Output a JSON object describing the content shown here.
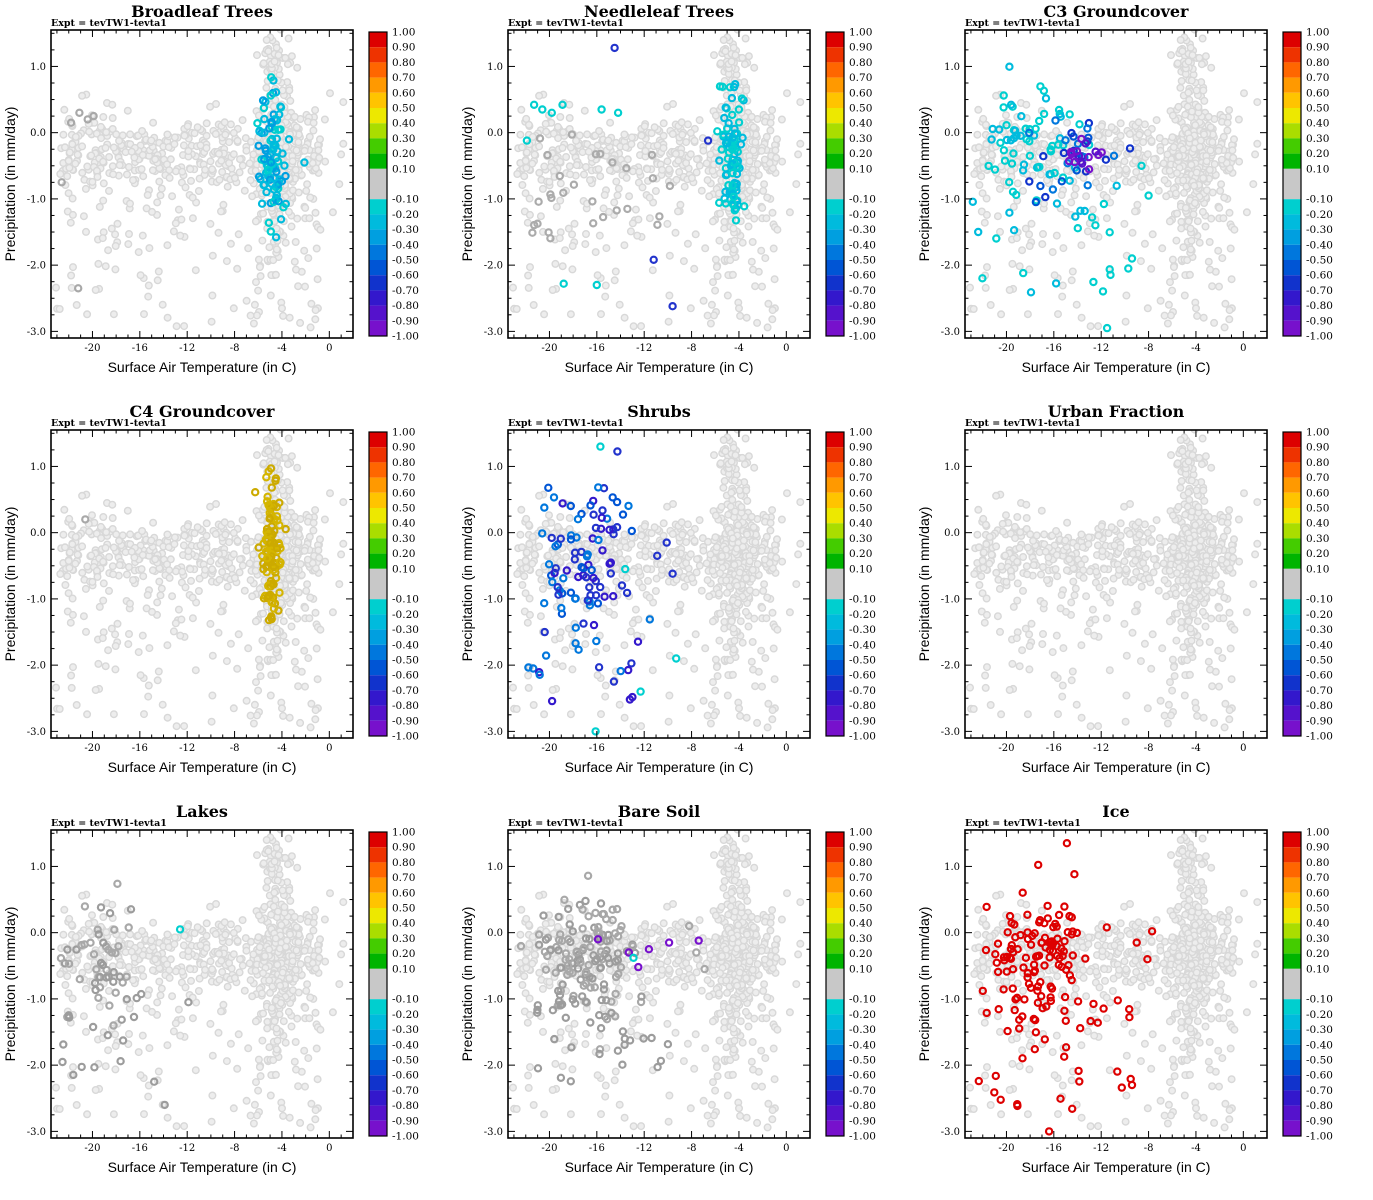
{
  "page_title": "Correlation scatter panels",
  "chart_data": {
    "type": "scatter",
    "grid": {
      "rows": 3,
      "cols": 3
    },
    "experiment_label": "Expt = tevTW1-tevta1",
    "xlabel": "Surface Air Temperature (in C)",
    "ylabel": "Precipitation (in mm/day)",
    "xlim": [
      -23.5,
      2.0
    ],
    "ylim": [
      -3.1,
      1.55
    ],
    "x_major_ticks": [
      -20,
      -16,
      -12,
      -8,
      -4,
      0
    ],
    "y_major_ticks": [
      1.0,
      0.0,
      -1.0,
      -2.0,
      -3.0
    ],
    "x_minor_step": 1,
    "y_minor_step": 0.25,
    "background_color": "#EDEDED",
    "background_edge": "#D8D8D8",
    "colorbar": {
      "range": [
        1.0,
        -1.0
      ],
      "labels": [
        "1.00",
        "0.90",
        "0.80",
        "0.70",
        "0.60",
        "0.50",
        "0.40",
        "0.30",
        "0.20",
        "0.10",
        "-0.10",
        "-0.20",
        "-0.30",
        "-0.40",
        "-0.50",
        "-0.60",
        "-0.70",
        "-0.80",
        "-0.90",
        "-1.00"
      ],
      "bands": [
        {
          "from": 1.0,
          "to": 0.9,
          "color": "#DD0000"
        },
        {
          "from": 0.9,
          "to": 0.8,
          "color": "#EE3300"
        },
        {
          "from": 0.8,
          "to": 0.7,
          "color": "#FF6600"
        },
        {
          "from": 0.7,
          "to": 0.6,
          "color": "#FF9900"
        },
        {
          "from": 0.6,
          "to": 0.5,
          "color": "#FFC400"
        },
        {
          "from": 0.5,
          "to": 0.4,
          "color": "#EDE800"
        },
        {
          "from": 0.4,
          "to": 0.3,
          "color": "#AADD00"
        },
        {
          "from": 0.3,
          "to": 0.2,
          "color": "#44CC00"
        },
        {
          "from": 0.2,
          "to": 0.1,
          "color": "#00B400"
        },
        {
          "from": 0.1,
          "to": -0.1,
          "color": "#C8C8C8"
        },
        {
          "from": -0.1,
          "to": -0.2,
          "color": "#00CFCF"
        },
        {
          "from": -0.2,
          "to": -0.3,
          "color": "#00BBDD"
        },
        {
          "from": -0.3,
          "to": -0.4,
          "color": "#009FE0"
        },
        {
          "from": -0.4,
          "to": -0.5,
          "color": "#0077DD"
        },
        {
          "from": -0.5,
          "to": -0.6,
          "color": "#0055D5"
        },
        {
          "from": -0.6,
          "to": -0.7,
          "color": "#1133CC"
        },
        {
          "from": -0.7,
          "to": -0.8,
          "color": "#3318CC"
        },
        {
          "from": -0.8,
          "to": -0.9,
          "color": "#5512CC"
        },
        {
          "from": -0.9,
          "to": -1.0,
          "color": "#7711CC"
        }
      ]
    },
    "background_clusters": [
      {
        "seed": 1,
        "count": 380,
        "x": {
          "type": "uniform",
          "a": -22.8,
          "b": -0.8
        },
        "y": {
          "type": "normal",
          "mean": -0.27,
          "sd": 0.27
        }
      },
      {
        "seed": 2,
        "count": 230,
        "x": {
          "type": "normal",
          "mean": -4.3,
          "sd": 0.75
        },
        "y": {
          "type": "normal",
          "mean": -0.45,
          "sd": 0.8
        }
      },
      {
        "seed": 3,
        "count": 34,
        "x": {
          "type": "normal",
          "mean": -4.7,
          "sd": 0.55
        },
        "y": {
          "type": "uniform",
          "a": 0.55,
          "b": 1.45
        }
      },
      {
        "seed": 4,
        "count": 150,
        "x": {
          "type": "uniform",
          "a": -23.2,
          "b": -0.6
        },
        "y": {
          "type": "uniform",
          "a": -2.95,
          "b": -0.4
        }
      },
      {
        "seed": 5,
        "count": 26,
        "x": {
          "type": "uniform",
          "a": -23.2,
          "b": -17.5
        },
        "y": {
          "type": "uniform",
          "a": -2.4,
          "b": 0.6
        }
      },
      {
        "seed": 6,
        "count": 10,
        "x": {
          "type": "uniform",
          "a": -0.8,
          "b": 1.3
        },
        "y": {
          "type": "normal",
          "mean": -0.3,
          "sd": 0.5
        }
      }
    ],
    "panels": [
      {
        "title": "Broadleaf Trees",
        "overlays": [
          {
            "seed": 11,
            "count": 95,
            "x": {
              "type": "normal",
              "mean": -4.9,
              "sd": 0.5
            },
            "y": {
              "type": "normal",
              "mean": -0.35,
              "sd": 0.52
            },
            "colors": [
              "#00BBDD",
              "#00CFCF",
              "#009FE0",
              "#00BBDD"
            ]
          },
          {
            "points": [
              [
                -2.1,
                -0.45
              ],
              [
                -3.4,
                -0.1
              ]
            ],
            "colors": [
              "#00BBDD"
            ]
          },
          {
            "points": [
              [
                -21.1,
                0.3
              ],
              [
                -20.4,
                0.2
              ],
              [
                -21.8,
                0.15
              ],
              [
                -22.6,
                -0.75
              ],
              [
                -21.2,
                -2.35
              ],
              [
                -19.9,
                0.25
              ]
            ],
            "colors": [
              "#A8A8A8"
            ]
          }
        ]
      },
      {
        "title": "Needleleaf Trees",
        "overlays": [
          {
            "seed": 21,
            "count": 85,
            "x": {
              "type": "normal",
              "mean": -4.6,
              "sd": 0.5
            },
            "y": {
              "type": "normal",
              "mean": -0.35,
              "sd": 0.55
            },
            "colors": [
              "#00BBDD",
              "#00CFCF"
            ]
          },
          {
            "points": [
              [
                -21.3,
                0.42
              ],
              [
                -20.6,
                0.35
              ],
              [
                -19.8,
                0.3
              ],
              [
                -18.9,
                0.42
              ],
              [
                -15.6,
                0.35
              ],
              [
                -14.2,
                0.3
              ],
              [
                -21.9,
                -0.12
              ],
              [
                -18.8,
                -2.28
              ],
              [
                -16.0,
                -2.3
              ]
            ],
            "colors": [
              "#00CFCF"
            ]
          },
          {
            "points": [
              [
                -14.5,
                1.28
              ],
              [
                -11.2,
                -1.92
              ],
              [
                -9.6,
                -2.62
              ],
              [
                -6.6,
                -0.12
              ]
            ],
            "colors": [
              "#2233CC"
            ]
          },
          {
            "seed": 22,
            "count": 28,
            "x": {
              "type": "uniform",
              "a": -21.5,
              "b": -8.5
            },
            "y": {
              "type": "uniform",
              "a": -1.6,
              "b": 0.3
            },
            "colors": [
              "#ABABAB"
            ]
          }
        ]
      },
      {
        "title": "C3 Groundcover",
        "overlays": [
          {
            "seed": 31,
            "count": 62,
            "x": {
              "type": "normal",
              "mean": -18.2,
              "sd": 2.1
            },
            "y": {
              "type": "normal",
              "mean": -0.15,
              "sd": 0.45
            },
            "colors": [
              "#00CFCF",
              "#00BBDD"
            ]
          },
          {
            "seed": 32,
            "count": 26,
            "x": {
              "type": "uniform",
              "a": -22.5,
              "b": -9.5
            },
            "y": {
              "type": "uniform",
              "a": -2.65,
              "b": -0.6
            },
            "colors": [
              "#00CFCF",
              "#00BBDD"
            ]
          },
          {
            "seed": 33,
            "count": 30,
            "x": {
              "type": "normal",
              "mean": -14.2,
              "sd": 1.9
            },
            "y": {
              "type": "normal",
              "mean": -0.35,
              "sd": 0.3
            },
            "colors": [
              "#0077DD",
              "#0055D5",
              "#1133CC"
            ]
          },
          {
            "seed": 34,
            "count": 16,
            "x": {
              "type": "normal",
              "mean": -13.6,
              "sd": 1.3
            },
            "y": {
              "type": "normal",
              "mean": -0.35,
              "sd": 0.14
            },
            "colors": [
              "#7711CC",
              "#5512CC"
            ]
          },
          {
            "points": [
              [
                -8.6,
                -0.5
              ],
              [
                -8.0,
                -0.95
              ],
              [
                -9.4,
                -1.9
              ],
              [
                -11.5,
                -2.95
              ]
            ],
            "colors": [
              "#00CFCF"
            ]
          }
        ]
      },
      {
        "title": "C4 Groundcover",
        "overlays": [
          {
            "seed": 41,
            "count": 115,
            "x": {
              "type": "normal",
              "mean": -4.85,
              "sd": 0.42
            },
            "y": {
              "type": "normal",
              "mean": -0.35,
              "sd": 0.5
            },
            "colors": [
              "#CCAA00",
              "#D4B500"
            ]
          },
          {
            "points": [
              [
                -20.6,
                0.2
              ]
            ],
            "colors": [
              "#A8A8A8"
            ]
          }
        ]
      },
      {
        "title": "Shrubs",
        "overlays": [
          {
            "seed": 51,
            "count": 85,
            "x": {
              "type": "normal",
              "mean": -17.3,
              "sd": 2.0
            },
            "y": {
              "type": "normal",
              "mean": -0.35,
              "sd": 0.55
            },
            "colors": [
              "#2233CC",
              "#0055D5",
              "#3318CC",
              "#0077DD"
            ]
          },
          {
            "seed": 52,
            "count": 22,
            "x": {
              "type": "uniform",
              "a": -22.3,
              "b": -10.5
            },
            "y": {
              "type": "uniform",
              "a": -2.55,
              "b": -0.9
            },
            "colors": [
              "#2233CC",
              "#3318CC",
              "#0077DD"
            ]
          },
          {
            "points": [
              [
                -15.7,
                1.3
              ],
              [
                -13.6,
                -0.55
              ],
              [
                -12.3,
                -2.4
              ],
              [
                -16.1,
                -3.0
              ],
              [
                -9.3,
                -1.9
              ]
            ],
            "colors": [
              "#00CFCF"
            ]
          },
          {
            "points": [
              [
                -10.9,
                -0.35
              ],
              [
                -9.6,
                -0.62
              ],
              [
                -10.1,
                -0.15
              ]
            ],
            "colors": [
              "#2233CC"
            ]
          }
        ]
      },
      {
        "title": "Urban Fraction",
        "overlays": []
      },
      {
        "title": "Lakes",
        "overlays": [
          {
            "seed": 71,
            "count": 48,
            "x": {
              "type": "normal",
              "mean": -19.3,
              "sd": 1.7
            },
            "y": {
              "type": "normal",
              "mean": -0.45,
              "sd": 0.5
            },
            "colors": [
              "#9C9C9C",
              "#A8A8A8"
            ]
          },
          {
            "seed": 72,
            "count": 16,
            "x": {
              "type": "uniform",
              "a": -22.6,
              "b": -14.5
            },
            "y": {
              "type": "uniform",
              "a": -2.25,
              "b": -0.8
            },
            "colors": [
              "#9C9C9C"
            ]
          },
          {
            "points": [
              [
                -13.9,
                -2.6
              ],
              [
                -11.9,
                -1.05
              ]
            ],
            "colors": [
              "#9C9C9C"
            ]
          },
          {
            "points": [
              [
                -12.6,
                0.05
              ]
            ],
            "colors": [
              "#00CFCF"
            ]
          }
        ]
      },
      {
        "title": "Bare Soil",
        "overlays": [
          {
            "seed": 81,
            "count": 130,
            "x": {
              "type": "normal",
              "mean": -16.8,
              "sd": 1.9
            },
            "y": {
              "type": "normal",
              "mean": -0.3,
              "sd": 0.5
            },
            "colors": [
              "#9C9C9C",
              "#A8A8A8"
            ]
          },
          {
            "seed": 82,
            "count": 30,
            "x": {
              "type": "uniform",
              "a": -22.3,
              "b": -9.0
            },
            "y": {
              "type": "uniform",
              "a": -2.3,
              "b": -0.7
            },
            "colors": [
              "#9C9C9C"
            ]
          },
          {
            "points": [
              [
                -7.6,
                -0.3
              ],
              [
                -6.9,
                -0.55
              ],
              [
                -8.2,
                0.1
              ]
            ],
            "colors": [
              "#A8A8A8"
            ]
          },
          {
            "points": [
              [
                -15.9,
                -0.1
              ],
              [
                -13.3,
                -0.3
              ],
              [
                -11.6,
                -0.25
              ],
              [
                -9.9,
                -0.15
              ],
              [
                -7.4,
                -0.12
              ],
              [
                -12.5,
                -0.52
              ]
            ],
            "colors": [
              "#7711CC"
            ]
          },
          {
            "points": [
              [
                -12.9,
                -0.38
              ]
            ],
            "colors": [
              "#00CFCF"
            ]
          }
        ]
      },
      {
        "title": "Ice",
        "overlays": [
          {
            "seed": 91,
            "count": 115,
            "x": {
              "type": "normal",
              "mean": -17.2,
              "sd": 2.1
            },
            "y": {
              "type": "normal",
              "mean": -0.4,
              "sd": 0.55
            },
            "colors": [
              "#DD0000"
            ]
          },
          {
            "seed": 92,
            "count": 32,
            "x": {
              "type": "uniform",
              "a": -22.6,
              "b": -9.0
            },
            "y": {
              "type": "uniform",
              "a": -2.7,
              "b": -0.95
            },
            "colors": [
              "#DD0000"
            ]
          },
          {
            "points": [
              [
                -14.9,
                1.35
              ],
              [
                -9.0,
                -0.15
              ],
              [
                -8.1,
                -0.4
              ],
              [
                -7.7,
                0.02
              ],
              [
                -16.4,
                -3.0
              ],
              [
                -9.4,
                -2.3
              ]
            ],
            "colors": [
              "#DD0000"
            ]
          }
        ]
      }
    ]
  }
}
